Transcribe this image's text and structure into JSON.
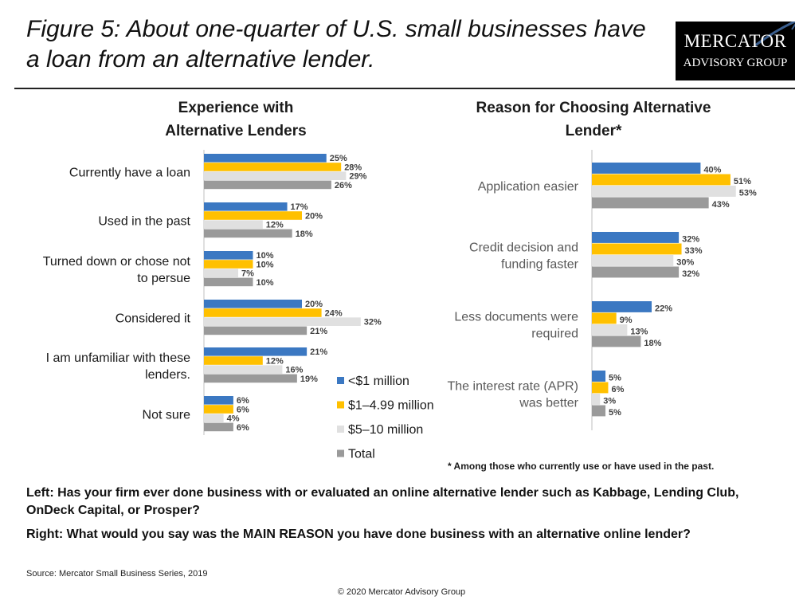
{
  "title": "Figure 5: About one-quarter of U.S. small businesses have a loan from an alternative lender.",
  "logo": {
    "line1": "MERCATOR",
    "line2": "ADVISORY GROUP"
  },
  "colors": {
    "s1": "#3b78c2",
    "s2": "#ffc000",
    "s3": "#e0e0e0",
    "s4": "#9a9a9a",
    "axis": "#bfbfbf",
    "label": "#595959"
  },
  "chart_data": [
    {
      "type": "bar",
      "orientation": "horizontal",
      "title": [
        "Experience with",
        "Alternative Lenders"
      ],
      "categories": [
        [
          "Currently have a loan"
        ],
        [
          "Used in the past"
        ],
        [
          "Turned down or chose not",
          "to persue"
        ],
        [
          "Considered it"
        ],
        [
          "I am unfamiliar with these",
          "lenders."
        ],
        [
          "Not sure"
        ]
      ],
      "series": [
        {
          "name": "<$1 million",
          "values": [
            25,
            17,
            10,
            20,
            21,
            6
          ]
        },
        {
          "name": "$1–4.99 million",
          "values": [
            28,
            20,
            10,
            24,
            12,
            6
          ]
        },
        {
          "name": "$5–10 million",
          "values": [
            29,
            12,
            7,
            32,
            16,
            4
          ]
        },
        {
          "name": "Total",
          "values": [
            26,
            18,
            10,
            21,
            19,
            6
          ]
        }
      ],
      "value_suffix": "%",
      "legend": "bottom-right"
    },
    {
      "type": "bar",
      "orientation": "horizontal",
      "title": [
        "Reason for Choosing Alternative",
        "Lender*"
      ],
      "categories": [
        [
          "Application easier"
        ],
        [
          "Credit decision and",
          "funding faster"
        ],
        [
          "Less documents were",
          "required"
        ],
        [
          "The interest rate (APR)",
          "was better"
        ]
      ],
      "series": [
        {
          "name": "<$1 million",
          "values": [
            40,
            32,
            22,
            5
          ]
        },
        {
          "name": "$1–4.99 million",
          "values": [
            51,
            33,
            9,
            6
          ]
        },
        {
          "name": "$5–10 million",
          "values": [
            53,
            30,
            13,
            3
          ]
        },
        {
          "name": "Total",
          "values": [
            43,
            32,
            18,
            5
          ]
        }
      ],
      "value_suffix": "%"
    }
  ],
  "footnote": "* Among those who currently use or have used in the past.",
  "question_left": "Left: Has your firm ever done business with or evaluated an online alternative lender such as Kabbage, Lending Club, OnDeck Capital, or Prosper?",
  "question_right": "Right: What would you say was the MAIN REASON you have done business with an alternative online lender?",
  "source": "Source:  Mercator Small Business Series, 2019",
  "copyright": "© 2020 Mercator Advisory Group"
}
